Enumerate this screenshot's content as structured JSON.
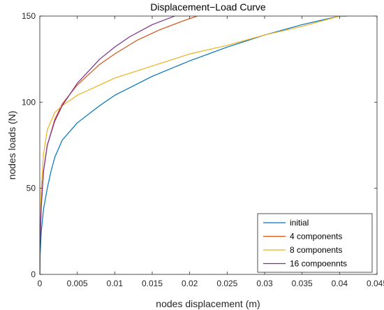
{
  "chart_data": {
    "type": "line",
    "title": "Displacement−Load Curve",
    "xlabel": "nodes displacement (m)",
    "ylabel": "nodes loads (N)",
    "xlim": [
      0,
      0.045
    ],
    "ylim": [
      0,
      150
    ],
    "xticks": [
      "0",
      "0.005",
      "0.01",
      "0.015",
      "0.02",
      "0.025",
      "0.03",
      "0.035",
      "0.04",
      "0.045"
    ],
    "yticks": [
      "0",
      "50",
      "100",
      "150"
    ],
    "grid": false,
    "legend_position": "bottom-right",
    "series": [
      {
        "name": "initial",
        "color": "#0072BD",
        "points": [
          [
            0,
            0
          ],
          [
            5e-05,
            12
          ],
          [
            0.0002,
            25
          ],
          [
            0.0005,
            38
          ],
          [
            0.001,
            50
          ],
          [
            0.0015,
            60
          ],
          [
            0.002,
            68
          ],
          [
            0.003,
            78
          ],
          [
            0.005,
            88
          ],
          [
            0.008,
            98
          ],
          [
            0.01,
            104
          ],
          [
            0.015,
            115
          ],
          [
            0.02,
            124
          ],
          [
            0.025,
            132
          ],
          [
            0.03,
            139
          ],
          [
            0.035,
            145
          ],
          [
            0.04,
            150
          ],
          [
            0.041,
            150
          ]
        ]
      },
      {
        "name": "4 components",
        "color": "#D95319",
        "points": [
          [
            0,
            0
          ],
          [
            5e-05,
            20
          ],
          [
            0.0002,
            40
          ],
          [
            0.0005,
            60
          ],
          [
            0.001,
            75
          ],
          [
            0.002,
            90
          ],
          [
            0.003,
            99
          ],
          [
            0.005,
            110
          ],
          [
            0.008,
            122
          ],
          [
            0.01,
            128
          ],
          [
            0.013,
            136
          ],
          [
            0.016,
            142
          ],
          [
            0.019,
            147
          ],
          [
            0.021,
            150
          ]
        ]
      },
      {
        "name": "8 components",
        "color": "#EDB120",
        "points": [
          [
            0,
            0
          ],
          [
            5e-05,
            25
          ],
          [
            0.0002,
            50
          ],
          [
            0.0005,
            70
          ],
          [
            0.001,
            84
          ],
          [
            0.002,
            94
          ],
          [
            0.003,
            98
          ],
          [
            0.005,
            104
          ],
          [
            0.008,
            110
          ],
          [
            0.01,
            114
          ],
          [
            0.015,
            121
          ],
          [
            0.02,
            128
          ],
          [
            0.025,
            133
          ],
          [
            0.03,
            139
          ],
          [
            0.035,
            144
          ],
          [
            0.04,
            150
          ]
        ]
      },
      {
        "name": "16 compoennts",
        "color": "#7E2F8E",
        "points": [
          [
            0,
            0
          ],
          [
            5e-05,
            20
          ],
          [
            0.0002,
            40
          ],
          [
            0.0005,
            60
          ],
          [
            0.001,
            75
          ],
          [
            0.002,
            89
          ],
          [
            0.003,
            98
          ],
          [
            0.005,
            111
          ],
          [
            0.008,
            125
          ],
          [
            0.01,
            132
          ],
          [
            0.012,
            138
          ],
          [
            0.015,
            145
          ],
          [
            0.018,
            150
          ]
        ]
      }
    ]
  }
}
